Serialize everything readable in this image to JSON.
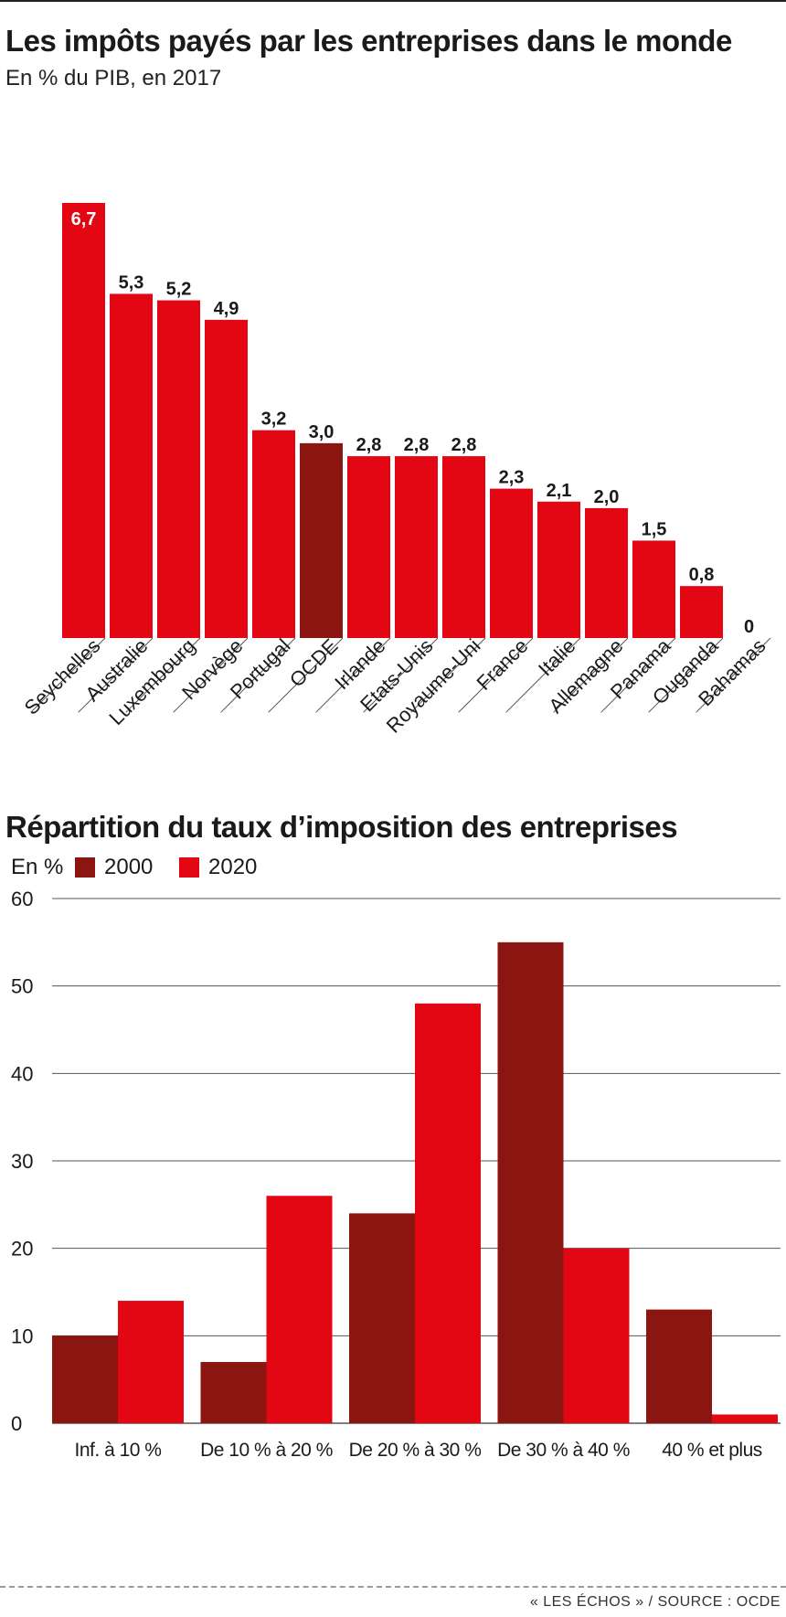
{
  "chart_data": [
    {
      "type": "bar",
      "title": "Les impôts payés par les entreprises dans le monde",
      "subtitle": "En % du PIB, en 2017",
      "categories": [
        "Seychelles",
        "Australie",
        "Luxembourg",
        "Norvège",
        "Portugal",
        "OCDE",
        "Irlande",
        "Etats-Unis",
        "Royaume-Uni",
        "France",
        "Italie",
        "Allemagne",
        "Panama",
        "Ouganda",
        "Bahamas"
      ],
      "values": [
        6.7,
        5.3,
        5.2,
        4.9,
        3.2,
        3.0,
        2.8,
        2.8,
        2.8,
        2.3,
        2.1,
        2.0,
        1.5,
        0.8,
        0
      ],
      "value_labels": [
        "6,7",
        "5,3",
        "5,2",
        "4,9",
        "3,2",
        "3,0",
        "2,8",
        "2,8",
        "2,8",
        "2,3",
        "2,1",
        "2,0",
        "1,5",
        "0,8",
        "0"
      ],
      "highlight": "OCDE",
      "ylim": [
        0,
        6.7
      ],
      "grid": false
    },
    {
      "type": "bar",
      "title": "Répartition du taux d’imposition des entreprises",
      "ylabel": "En %",
      "categories": [
        "Inf. à 10 %",
        "De 10 % à 20 %",
        "De 20 % à 30 %",
        "De 30 % à 40 %",
        "40 % et plus"
      ],
      "series": [
        {
          "name": "2000",
          "values": [
            10,
            7,
            24,
            55,
            13
          ]
        },
        {
          "name": "2020",
          "values": [
            14,
            26,
            48,
            20,
            1
          ]
        }
      ],
      "ylim": [
        0,
        60
      ],
      "yticks": [
        0,
        10,
        20,
        30,
        40,
        50,
        60
      ],
      "grid": true,
      "legend": "top-left"
    }
  ],
  "colors": {
    "red": "#e30613",
    "dark_red": "#8b1510",
    "text": "#1a1a1a"
  },
  "footer": {
    "source": "« LES ÉCHOS » / SOURCE : OCDE"
  }
}
